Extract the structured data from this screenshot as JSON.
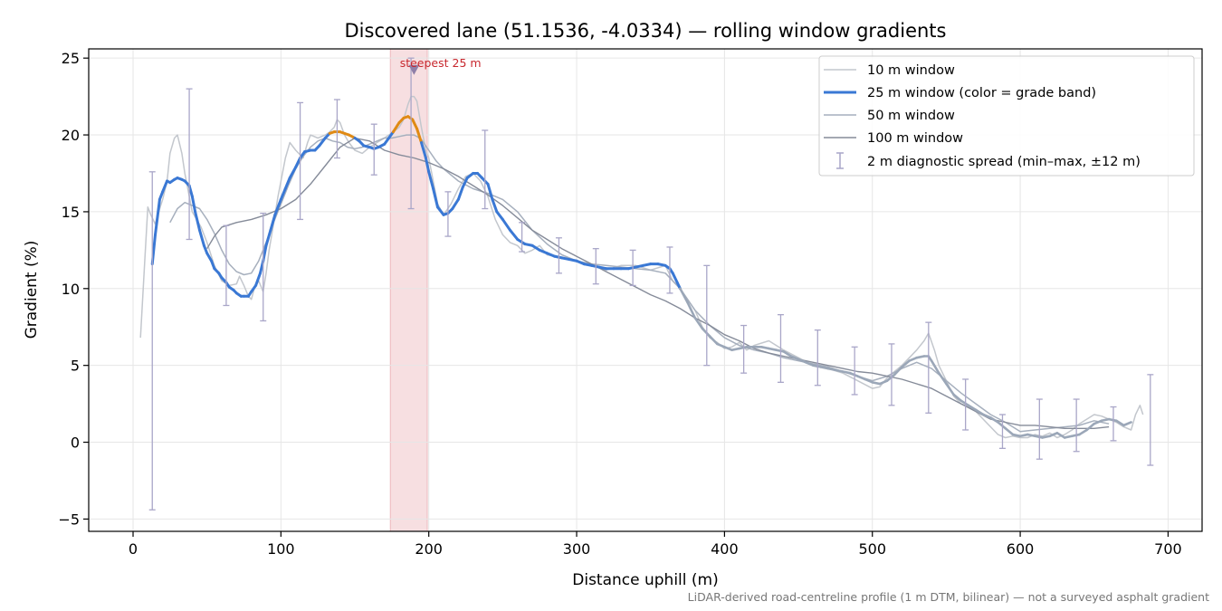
{
  "chart_data": {
    "type": "line",
    "title": "Discovered lane (51.1536, -4.0334) — rolling window gradients",
    "xlabel": "Distance uphill (m)",
    "ylabel": "Gradient (%)",
    "xlim": [
      -30,
      723
    ],
    "ylim": [
      -5.8,
      25.6
    ],
    "x_ticks": [
      0,
      100,
      200,
      300,
      400,
      500,
      600,
      700
    ],
    "y_ticks": [
      -5,
      0,
      5,
      10,
      15,
      20,
      25
    ],
    "grid": true,
    "legend_position": "top-right",
    "colors": {
      "w10": "#c3c7cd",
      "w25": "#3a78d4",
      "w25_orange": "#e08a14",
      "w25_grey": "#9ba7b8",
      "w50": "#a6afbd",
      "w100": "#858b99",
      "errorbar": "#a9a6c8",
      "band": "#e8a3a8",
      "marker": "#8f7fa8"
    },
    "steepest_band": {
      "x0": 174,
      "x1": 199,
      "label": "steepest 25 m"
    },
    "steepest_marker": {
      "x": 190,
      "y": 24.2
    },
    "series": [
      {
        "name": "10 m window",
        "x": [
          5,
          8,
          10,
          12,
          15,
          18,
          20,
          23,
          25,
          28,
          30,
          33,
          35,
          38,
          40,
          43,
          46,
          50,
          55,
          60,
          65,
          70,
          72,
          75,
          78,
          80,
          82,
          85,
          88,
          90,
          92,
          95,
          98,
          100,
          103,
          106,
          110,
          115,
          118,
          120,
          125,
          130,
          133,
          136,
          138,
          140,
          143,
          146,
          150,
          155,
          160,
          165,
          170,
          173,
          176,
          180,
          183,
          186,
          188,
          190,
          192,
          195,
          198,
          200,
          203,
          206,
          210,
          215,
          220,
          225,
          230,
          235,
          240,
          245,
          250,
          255,
          260,
          265,
          270,
          275,
          280,
          290,
          300,
          310,
          320,
          330,
          340,
          350,
          360,
          365,
          370,
          375,
          380,
          385,
          390,
          395,
          400,
          405,
          410,
          415,
          420,
          430,
          440,
          450,
          460,
          470,
          480,
          490,
          500,
          505,
          510,
          515,
          520,
          525,
          530,
          535,
          538,
          542,
          545,
          550,
          555,
          560,
          565,
          570,
          575,
          580,
          585,
          590,
          595,
          600,
          605,
          610,
          615,
          620,
          625,
          630,
          635,
          640,
          645,
          650,
          655,
          660,
          665,
          670,
          675,
          678,
          681,
          683
        ],
        "y": [
          6.8,
          12.0,
          15.3,
          14.8,
          14.2,
          15.2,
          15.8,
          17.0,
          18.8,
          19.8,
          20.0,
          18.8,
          17.5,
          16.0,
          15.0,
          14.5,
          14.0,
          13.0,
          11.5,
          10.5,
          10.2,
          10.3,
          10.8,
          10.2,
          9.5,
          9.3,
          10.0,
          10.5,
          9.8,
          11.0,
          12.5,
          14.2,
          16.0,
          17.0,
          18.5,
          19.5,
          19.0,
          18.5,
          19.5,
          20.0,
          19.8,
          20.0,
          20.2,
          20.5,
          21.0,
          20.8,
          20.0,
          19.5,
          19.0,
          18.8,
          19.2,
          19.5,
          19.8,
          20.0,
          20.2,
          20.5,
          21.0,
          22.0,
          22.5,
          22.5,
          22.2,
          20.5,
          19.0,
          18.5,
          17.0,
          15.5,
          14.8,
          15.5,
          16.5,
          17.3,
          17.5,
          17.0,
          16.0,
          14.5,
          13.5,
          13.0,
          12.8,
          12.3,
          12.5,
          12.8,
          12.2,
          12.0,
          11.8,
          11.5,
          11.2,
          11.5,
          11.5,
          11.2,
          11.5,
          10.5,
          10.0,
          9.3,
          8.6,
          7.5,
          6.8,
          6.5,
          6.1,
          6.2,
          6.5,
          6.0,
          6.3,
          6.6,
          6.0,
          5.5,
          5.0,
          4.8,
          4.5,
          4.0,
          3.5,
          3.6,
          4.2,
          4.6,
          5.0,
          5.5,
          6.0,
          6.6,
          7.1,
          6.0,
          5.0,
          4.0,
          3.0,
          2.5,
          2.3,
          2.0,
          1.5,
          1.0,
          0.5,
          0.3,
          0.4,
          0.3,
          0.3,
          0.5,
          0.4,
          0.6,
          0.3,
          0.5,
          0.8,
          1.2,
          1.5,
          1.8,
          1.7,
          1.5,
          1.3,
          1.0,
          0.8,
          1.8,
          2.4,
          1.8
        ]
      },
      {
        "name": "25 m window (color = grade band)",
        "x": [
          13,
          15,
          18,
          20,
          23,
          25,
          28,
          30,
          33,
          35,
          38,
          40,
          42,
          45,
          48,
          50,
          53,
          55,
          58,
          60,
          63,
          65,
          68,
          70,
          73,
          75,
          78,
          80,
          83,
          86,
          88,
          90,
          93,
          96,
          100,
          103,
          106,
          110,
          113,
          116,
          120,
          123,
          126,
          130,
          133,
          136,
          140,
          143,
          146,
          150,
          153,
          156,
          160,
          163,
          166,
          170,
          173,
          176,
          180,
          183,
          186,
          189,
          192,
          195,
          198,
          200,
          203,
          206,
          210,
          213,
          216,
          220,
          223,
          226,
          230,
          233,
          236,
          240,
          243,
          246,
          250,
          255,
          260,
          265,
          270,
          275,
          280,
          285,
          290,
          295,
          300,
          305,
          310,
          315,
          320,
          325,
          330,
          335,
          340,
          345,
          350,
          355,
          360,
          363,
          365,
          368,
          370,
          375,
          380,
          385,
          390,
          395,
          400,
          405,
          410,
          415,
          420,
          425,
          430,
          435,
          440,
          445,
          450,
          455,
          460,
          465,
          470,
          475,
          480,
          485,
          490,
          495,
          500,
          505,
          510,
          515,
          520,
          525,
          530,
          535,
          538,
          540,
          545,
          550,
          555,
          560,
          565,
          570,
          575,
          580,
          585,
          590,
          595,
          600,
          605,
          610,
          615,
          620,
          625,
          630,
          635,
          640,
          645,
          650,
          655,
          660,
          665,
          670,
          675
        ],
        "y": [
          11.6,
          13.5,
          15.8,
          16.3,
          17.0,
          16.9,
          17.1,
          17.2,
          17.1,
          17.0,
          16.7,
          16.0,
          15.0,
          13.8,
          12.8,
          12.3,
          11.8,
          11.3,
          11.0,
          10.7,
          10.4,
          10.1,
          9.9,
          9.7,
          9.5,
          9.5,
          9.5,
          9.8,
          10.2,
          11.0,
          11.8,
          12.8,
          13.8,
          14.8,
          15.8,
          16.5,
          17.2,
          17.9,
          18.5,
          18.9,
          19.0,
          19.0,
          19.3,
          19.8,
          20.1,
          20.2,
          20.2,
          20.1,
          20.0,
          19.8,
          19.6,
          19.3,
          19.2,
          19.1,
          19.2,
          19.4,
          19.8,
          20.2,
          20.8,
          21.1,
          21.2,
          21.0,
          20.4,
          19.5,
          18.5,
          17.6,
          16.5,
          15.3,
          14.8,
          14.9,
          15.2,
          15.8,
          16.6,
          17.2,
          17.5,
          17.5,
          17.2,
          16.8,
          15.8,
          15.0,
          14.5,
          13.8,
          13.2,
          12.9,
          12.8,
          12.5,
          12.3,
          12.1,
          12.0,
          11.9,
          11.8,
          11.6,
          11.5,
          11.4,
          11.3,
          11.3,
          11.3,
          11.3,
          11.4,
          11.5,
          11.6,
          11.6,
          11.5,
          11.3,
          11.0,
          10.4,
          10.0,
          9.1,
          8.1,
          7.4,
          6.9,
          6.4,
          6.2,
          6.0,
          6.1,
          6.2,
          6.2,
          6.2,
          6.1,
          6.0,
          5.9,
          5.6,
          5.4,
          5.2,
          5.0,
          4.9,
          4.8,
          4.7,
          4.6,
          4.5,
          4.3,
          4.1,
          3.9,
          3.8,
          4.0,
          4.4,
          4.9,
          5.3,
          5.5,
          5.6,
          5.6,
          5.3,
          4.5,
          3.8,
          3.1,
          2.7,
          2.4,
          2.1,
          1.8,
          1.6,
          1.3,
          0.9,
          0.5,
          0.4,
          0.5,
          0.4,
          0.3,
          0.4,
          0.6,
          0.3,
          0.4,
          0.5,
          0.8,
          1.2,
          1.4,
          1.5,
          1.4,
          1.1,
          1.3
        ]
      },
      {
        "name": "50 m window",
        "x": [
          25,
          30,
          35,
          40,
          45,
          50,
          55,
          60,
          65,
          70,
          75,
          80,
          85,
          90,
          95,
          100,
          105,
          110,
          115,
          120,
          125,
          130,
          135,
          140,
          145,
          150,
          155,
          160,
          165,
          170,
          175,
          180,
          185,
          188,
          190,
          192,
          195,
          200,
          205,
          210,
          220,
          230,
          240,
          250,
          260,
          270,
          280,
          290,
          300,
          310,
          320,
          330,
          340,
          350,
          360,
          370,
          380,
          390,
          400,
          410,
          420,
          430,
          440,
          450,
          460,
          470,
          480,
          490,
          500,
          510,
          520,
          530,
          540,
          550,
          560,
          570,
          580,
          590,
          600,
          610,
          620,
          630,
          640,
          650,
          660
        ],
        "y": [
          14.3,
          15.2,
          15.6,
          15.4,
          15.2,
          14.5,
          13.6,
          12.5,
          11.6,
          11.1,
          10.9,
          11.0,
          11.8,
          13.0,
          14.3,
          15.5,
          16.7,
          17.8,
          18.6,
          19.2,
          19.6,
          19.8,
          19.6,
          19.5,
          19.2,
          19.1,
          19.2,
          19.4,
          19.6,
          19.8,
          19.8,
          19.9,
          20.0,
          20.0,
          20.0,
          19.9,
          19.7,
          19.0,
          18.3,
          17.8,
          17.0,
          16.5,
          16.2,
          15.8,
          15.0,
          13.8,
          12.9,
          12.2,
          11.8,
          11.6,
          11.5,
          11.4,
          11.3,
          11.2,
          11.0,
          10.0,
          8.6,
          7.6,
          6.8,
          6.3,
          6.0,
          5.8,
          5.5,
          5.3,
          5.1,
          4.9,
          4.6,
          4.3,
          4.0,
          4.3,
          4.8,
          5.2,
          4.8,
          4.0,
          3.2,
          2.5,
          1.8,
          1.3,
          0.7,
          0.8,
          0.9,
          1.0,
          1.1,
          1.4,
          1.2
        ]
      },
      {
        "name": "100 m window",
        "x": [
          50,
          55,
          60,
          70,
          80,
          90,
          100,
          110,
          120,
          130,
          140,
          150,
          160,
          170,
          180,
          190,
          200,
          210,
          220,
          230,
          240,
          250,
          260,
          270,
          280,
          290,
          300,
          310,
          320,
          330,
          340,
          350,
          360,
          370,
          380,
          390,
          400,
          410,
          420,
          430,
          440,
          450,
          460,
          470,
          480,
          490,
          500,
          510,
          520,
          530,
          540,
          550,
          560,
          570,
          580,
          590,
          600,
          610,
          620,
          630,
          640,
          650,
          660
        ],
        "y": [
          12.6,
          13.4,
          14.0,
          14.3,
          14.5,
          14.8,
          15.2,
          15.8,
          16.8,
          18.0,
          19.2,
          19.8,
          19.6,
          19.0,
          18.7,
          18.5,
          18.2,
          17.8,
          17.3,
          16.7,
          16.1,
          15.4,
          14.6,
          13.8,
          13.2,
          12.6,
          12.1,
          11.6,
          11.1,
          10.6,
          10.1,
          9.6,
          9.2,
          8.7,
          8.1,
          7.6,
          7.0,
          6.6,
          6.1,
          5.8,
          5.6,
          5.4,
          5.2,
          5.0,
          4.8,
          4.6,
          4.5,
          4.3,
          4.1,
          3.8,
          3.5,
          3.0,
          2.5,
          2.0,
          1.5,
          1.3,
          1.1,
          1.1,
          1.0,
          0.9,
          0.9,
          0.9,
          1.0
        ]
      }
    ],
    "errorbars": {
      "name": "2 m diagnostic spread (min–max, ±12 m)",
      "x": [
        13,
        38,
        63,
        88,
        113,
        138,
        163,
        188,
        213,
        238,
        263,
        288,
        313,
        338,
        363,
        388,
        413,
        438,
        463,
        488,
        513,
        538,
        563,
        588,
        613,
        638,
        663,
        688
      ],
      "low": [
        -4.4,
        13.2,
        8.9,
        7.9,
        14.5,
        18.5,
        17.4,
        15.2,
        13.4,
        15.2,
        12.4,
        11.0,
        10.3,
        10.2,
        9.7,
        5.0,
        4.5,
        3.9,
        3.7,
        3.1,
        2.4,
        1.9,
        0.8,
        -0.4,
        -1.1,
        -0.6,
        0.1,
        -1.5
      ],
      "high": [
        17.6,
        23.0,
        14.1,
        14.9,
        22.1,
        22.3,
        20.7,
        25.0,
        16.3,
        20.3,
        14.3,
        13.3,
        12.6,
        12.5,
        12.7,
        11.5,
        7.6,
        8.3,
        7.3,
        6.2,
        6.4,
        7.8,
        4.1,
        1.8,
        2.8,
        2.8,
        2.3,
        4.4
      ]
    },
    "footnote": "LiDAR-derived road-centreline profile (1 m DTM, bilinear) — not a surveyed asphalt gradient"
  }
}
